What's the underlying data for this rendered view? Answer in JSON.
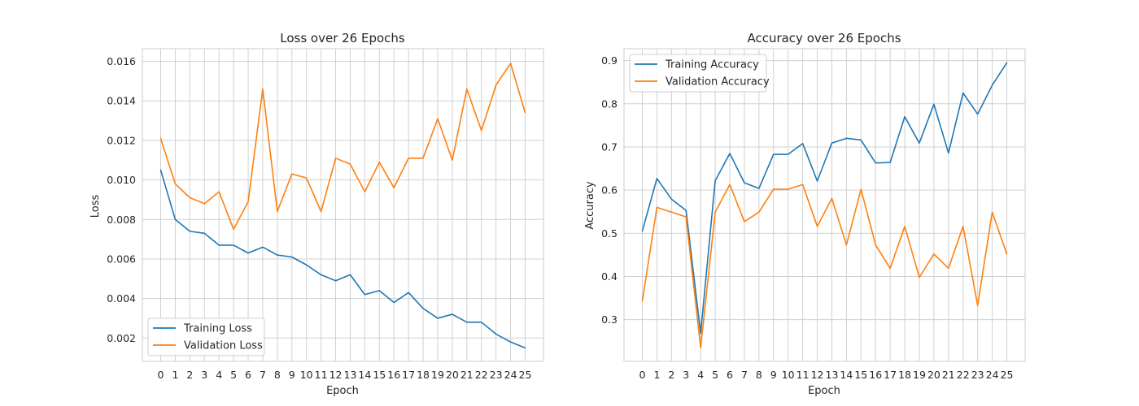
{
  "chart_data": [
    {
      "type": "line",
      "title": "Loss over 26 Epochs",
      "xlabel": "Epoch",
      "ylabel": "Loss",
      "x": [
        0,
        1,
        2,
        3,
        4,
        5,
        6,
        7,
        8,
        9,
        10,
        11,
        12,
        13,
        14,
        15,
        16,
        17,
        18,
        19,
        20,
        21,
        22,
        23,
        24,
        25
      ],
      "ylim": [
        0.00082,
        0.01664
      ],
      "yticks": [
        0.002,
        0.004,
        0.006,
        0.008,
        0.01,
        0.012,
        0.014,
        0.016
      ],
      "ytick_labels": [
        "0.002",
        "0.004",
        "0.006",
        "0.008",
        "0.010",
        "0.012",
        "0.014",
        "0.016"
      ],
      "grid": true,
      "legend_position": "bottom-left",
      "series": [
        {
          "name": "Training Loss",
          "color": "#1f77b4",
          "values": [
            0.0105,
            0.008,
            0.0074,
            0.0073,
            0.0067,
            0.0067,
            0.0063,
            0.0066,
            0.0062,
            0.0061,
            0.0057,
            0.0052,
            0.0049,
            0.0052,
            0.0042,
            0.0044,
            0.0038,
            0.0043,
            0.0035,
            0.003,
            0.0032,
            0.0028,
            0.0028,
            0.0022,
            0.0018,
            0.0015
          ]
        },
        {
          "name": "Validation Loss",
          "color": "#ff7f0e",
          "values": [
            0.0121,
            0.0098,
            0.0091,
            0.0088,
            0.0094,
            0.0075,
            0.0089,
            0.0146,
            0.0084,
            0.0103,
            0.0101,
            0.0084,
            0.0111,
            0.0108,
            0.0094,
            0.0109,
            0.0096,
            0.0111,
            0.0111,
            0.0131,
            0.011,
            0.0146,
            0.0125,
            0.0148,
            0.0159,
            0.0134
          ]
        }
      ]
    },
    {
      "type": "line",
      "title": "Accuracy over 26 Epochs",
      "xlabel": "Epoch",
      "ylabel": "Accuracy",
      "x": [
        0,
        1,
        2,
        3,
        4,
        5,
        6,
        7,
        8,
        9,
        10,
        11,
        12,
        13,
        14,
        15,
        16,
        17,
        18,
        19,
        20,
        21,
        22,
        23,
        24,
        25
      ],
      "ylim": [
        0.2035,
        0.9275
      ],
      "yticks": [
        0.3,
        0.4,
        0.5,
        0.6,
        0.7,
        0.8,
        0.9
      ],
      "ytick_labels": [
        "0.3",
        "0.4",
        "0.5",
        "0.6",
        "0.7",
        "0.8",
        "0.9"
      ],
      "grid": true,
      "legend_position": "top-left",
      "series": [
        {
          "name": "Training Accuracy",
          "color": "#1f77b4",
          "values": [
            0.505,
            0.627,
            0.579,
            0.553,
            0.268,
            0.622,
            0.685,
            0.617,
            0.604,
            0.683,
            0.683,
            0.708,
            0.621,
            0.709,
            0.72,
            0.716,
            0.663,
            0.664,
            0.77,
            0.709,
            0.799,
            0.686,
            0.825,
            0.776,
            0.843,
            0.895
          ]
        },
        {
          "name": "Validation Accuracy",
          "color": "#ff7f0e",
          "values": [
            0.343,
            0.56,
            0.549,
            0.538,
            0.235,
            0.549,
            0.613,
            0.527,
            0.549,
            0.602,
            0.602,
            0.613,
            0.516,
            0.581,
            0.473,
            0.602,
            0.473,
            0.419,
            0.516,
            0.398,
            0.452,
            0.419,
            0.516,
            0.333,
            0.549,
            0.452
          ]
        }
      ]
    }
  ]
}
